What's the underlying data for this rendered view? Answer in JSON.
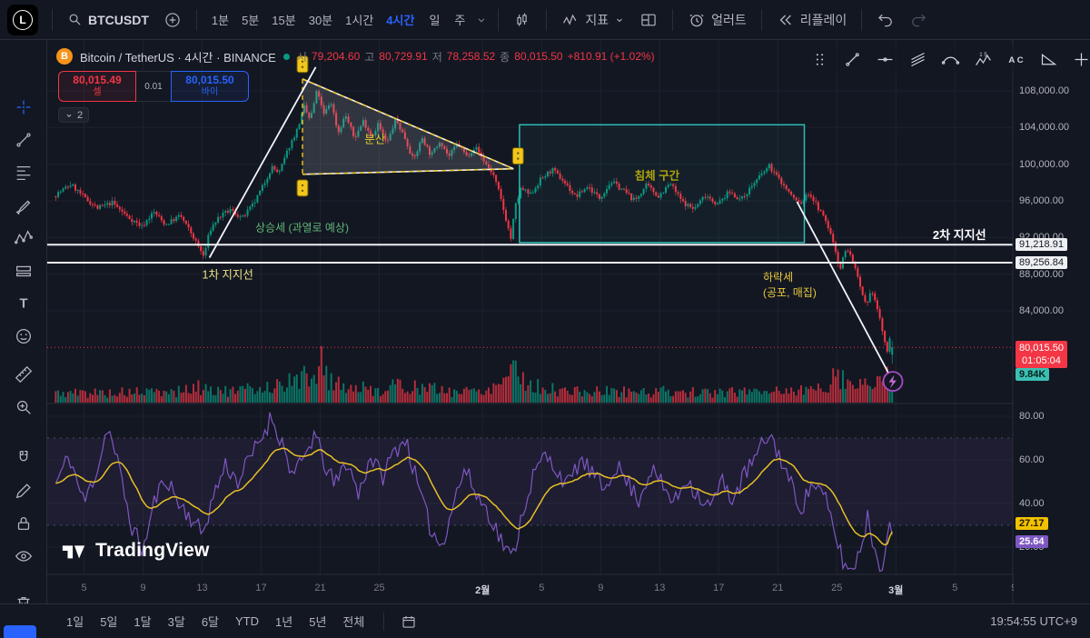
{
  "app": {
    "logo_letter": "L"
  },
  "top_toolbar": {
    "symbol": "BTCUSDT",
    "intervals": [
      "1분",
      "5분",
      "15분",
      "30분",
      "1시간",
      "4시간"
    ],
    "active_interval": "4시간",
    "interval_day": "일",
    "interval_week": "주",
    "indicators_label": "지표",
    "alerts_label": "얼러트",
    "replay_label": "리플레이"
  },
  "legend": {
    "title": "Bitcoin / TetherUS · 4시간 · BINANCE",
    "open_label": "시",
    "open": "79,204.60",
    "high_label": "고",
    "high": "80,729.91",
    "low_label": "저",
    "low": "78,258.52",
    "close_label": "종",
    "close": "80,015.50",
    "change": "+810.91 (+1.02%)",
    "collapse_count": "2"
  },
  "trade_widget": {
    "sell_price": "80,015.49",
    "sell_label": "셀",
    "spread": "0.01",
    "buy_price": "80,015.50",
    "buy_label": "바이"
  },
  "sidebar": {
    "tools": [
      "crosshair",
      "trend-line",
      "fib-retracement",
      "brush",
      "xabcd-pattern",
      "long-position",
      "text",
      "emoji",
      "measure",
      "zoom-in",
      "magnet",
      "draw-edit",
      "lock",
      "hide",
      "trash"
    ]
  },
  "floating_toolbar": {
    "tools": [
      "drag-handle",
      "trend-line-tool",
      "horizontal-line-tool",
      "parallel-channel-tool",
      "curve-tool",
      "polyline-tool",
      "text-pattern-tool",
      "triangle-pattern-tool",
      "clipped-tool"
    ]
  },
  "bottom_toolbar": {
    "ranges": [
      "1일",
      "5일",
      "1달",
      "3달",
      "6달",
      "YTD",
      "1년",
      "5년",
      "전체"
    ],
    "clock": "19:54:55 UTC+9"
  },
  "watermark": "TradingView",
  "chart_data": {
    "type": "candlestick",
    "symbol": "BTCUSDT",
    "exchange": "BINANCE",
    "interval": "4시간",
    "last": {
      "open": 79204.6,
      "high": 80729.91,
      "low": 78258.52,
      "close": 80015.5,
      "change": "+810.91 (+1.02%)"
    },
    "y_axis": {
      "ticks": [
        {
          "label": "108,000.00",
          "price": 108000
        },
        {
          "label": "104,000.00",
          "price": 104000
        },
        {
          "label": "100,000.00",
          "price": 100000
        },
        {
          "label": "96,000.00",
          "price": 96000
        },
        {
          "label": "92,000.00",
          "price": 92000
        },
        {
          "label": "88,000.00",
          "price": 88000
        },
        {
          "label": "84,000.00",
          "price": 84000
        }
      ]
    },
    "x_axis": {
      "labels": [
        {
          "label": "5",
          "day": 2
        },
        {
          "label": "9",
          "day": 6
        },
        {
          "label": "13",
          "day": 10
        },
        {
          "label": "17",
          "day": 14
        },
        {
          "label": "21",
          "day": 18
        },
        {
          "label": "25",
          "day": 22
        },
        {
          "label": "2월",
          "day": 29,
          "major": true
        },
        {
          "label": "5",
          "day": 33
        },
        {
          "label": "9",
          "day": 37
        },
        {
          "label": "13",
          "day": 41
        },
        {
          "label": "17",
          "day": 45
        },
        {
          "label": "21",
          "day": 49
        },
        {
          "label": "25",
          "day": 53
        },
        {
          "label": "3월",
          "day": 57,
          "major": true
        },
        {
          "label": "5",
          "day": 61
        },
        {
          "label": "9",
          "day": 65
        }
      ]
    },
    "supports": [
      {
        "label": "91,218.91",
        "price": 91218.91
      },
      {
        "label": "89,256.84",
        "price": 89256.84
      }
    ],
    "last_price_tag": {
      "price_label": "80,015.50",
      "countdown": "01:05:04"
    },
    "volume_tag": "9.84K",
    "oscillator": {
      "ticks": [
        {
          "label": "80.00",
          "value": 80
        },
        {
          "label": "60.00",
          "value": 60
        },
        {
          "label": "40.00",
          "value": 40
        },
        {
          "label": "20.00",
          "value": 20
        }
      ],
      "bands": [
        70,
        30
      ],
      "ma_value": "27.17",
      "ma_end": 27.17,
      "line_value": "25.64",
      "line_end": 25.64
    },
    "annotations": {
      "dispersion": {
        "text": "분산",
        "day": 21.0,
        "price": 102800
      },
      "stagnation": {
        "text": "침체 구간",
        "day": 39.3,
        "price": 98900
      },
      "uptrend": {
        "text": "상승세 (과열로 예상)",
        "day": 13.6,
        "price": 93100
      },
      "support1": {
        "text": "1차 지지선",
        "day": 10.0,
        "price": 88100
      },
      "support2": {
        "text": "2차 지지선",
        "day": 59.5,
        "price": 93300
      },
      "downtrend": {
        "text": "하락세\n(공포, 매집)",
        "day": 48.0,
        "price": 88600
      }
    },
    "drawings": {
      "triangle": {
        "left_day": 16.8,
        "top_price": 109300,
        "bottom_price": 98900,
        "apex_day": 31.1,
        "apex_price": 99500
      },
      "range_box": {
        "day1": 31.5,
        "day2": 50.8,
        "price1": 104300,
        "price2": 91450
      },
      "uptrend_line": {
        "from": [
          10.5,
          89800
        ],
        "to": [
          17.7,
          110600
        ]
      },
      "downtrend_line": {
        "from": [
          50.3,
          95900
        ],
        "to": [
          56.6,
          76900
        ]
      },
      "markers": [
        [
          16.8,
          110900
        ],
        [
          16.8,
          97400
        ],
        [
          31.4,
          100900
        ]
      ],
      "bolt": [
        56.8,
        76300
      ]
    },
    "price_path": [
      [
        0,
        96500
      ],
      [
        1.2,
        97800
      ],
      [
        2.2,
        96200
      ],
      [
        3,
        95200
      ],
      [
        4,
        95800
      ],
      [
        5,
        94300
      ],
      [
        6,
        93200
      ],
      [
        6.8,
        94800
      ],
      [
        7.6,
        93400
      ],
      [
        8.6,
        94400
      ],
      [
        9.4,
        92300
      ],
      [
        10.2,
        89900
      ],
      [
        10.6,
        92800
      ],
      [
        11.2,
        94200
      ],
      [
        12,
        95000
      ],
      [
        12.8,
        94100
      ],
      [
        13.6,
        95700
      ],
      [
        14.2,
        97600
      ],
      [
        14.8,
        99700
      ],
      [
        15.3,
        99000
      ],
      [
        15.9,
        101600
      ],
      [
        16.5,
        103700
      ],
      [
        17,
        106200
      ],
      [
        17.4,
        104800
      ],
      [
        17.9,
        108200
      ],
      [
        18.3,
        105300
      ],
      [
        18.8,
        106900
      ],
      [
        19.3,
        103400
      ],
      [
        19.8,
        105400
      ],
      [
        20.4,
        102800
      ],
      [
        21,
        104700
      ],
      [
        21.6,
        103000
      ],
      [
        22,
        104400
      ],
      [
        22.6,
        102200
      ],
      [
        23.2,
        104900
      ],
      [
        23.8,
        103000
      ],
      [
        24.4,
        100400
      ],
      [
        25,
        102900
      ],
      [
        25.6,
        100900
      ],
      [
        26.2,
        102600
      ],
      [
        26.8,
        100800
      ],
      [
        27.4,
        102300
      ],
      [
        28,
        100900
      ],
      [
        28.6,
        101900
      ],
      [
        29.2,
        100300
      ],
      [
        29.8,
        98900
      ],
      [
        30.2,
        96900
      ],
      [
        30.7,
        93800
      ],
      [
        31,
        91900
      ],
      [
        31.3,
        95400
      ],
      [
        31.7,
        97400
      ],
      [
        32.3,
        96600
      ],
      [
        33,
        98300
      ],
      [
        33.8,
        99400
      ],
      [
        34.6,
        98100
      ],
      [
        35.4,
        96400
      ],
      [
        36.2,
        97600
      ],
      [
        37,
        96300
      ],
      [
        37.8,
        98100
      ],
      [
        38.6,
        97200
      ],
      [
        39.4,
        96000
      ],
      [
        40.2,
        97700
      ],
      [
        41,
        96500
      ],
      [
        41.8,
        97900
      ],
      [
        42.6,
        95900
      ],
      [
        43.4,
        95100
      ],
      [
        44.2,
        96700
      ],
      [
        45,
        95600
      ],
      [
        45.8,
        97000
      ],
      [
        46.6,
        96100
      ],
      [
        47.4,
        97800
      ],
      [
        48,
        98900
      ],
      [
        48.5,
        99800
      ],
      [
        49.2,
        98300
      ],
      [
        50,
        96600
      ],
      [
        50.6,
        95600
      ],
      [
        51.2,
        96900
      ],
      [
        51.8,
        95300
      ],
      [
        52.4,
        93600
      ],
      [
        52.9,
        91200
      ],
      [
        53.3,
        88500
      ],
      [
        53.7,
        90900
      ],
      [
        54.2,
        89400
      ],
      [
        54.7,
        86200
      ],
      [
        55.1,
        84300
      ],
      [
        55.45,
        86400
      ],
      [
        55.9,
        83800
      ],
      [
        56.2,
        81600
      ],
      [
        56.5,
        79300
      ],
      [
        56.7,
        81600
      ],
      [
        56.9,
        80300
      ]
    ],
    "osc_path": [
      [
        0,
        48
      ],
      [
        1,
        62
      ],
      [
        2,
        40
      ],
      [
        3,
        58
      ],
      [
        3.6,
        76
      ],
      [
        4.3,
        58
      ],
      [
        5.2,
        30
      ],
      [
        6,
        18
      ],
      [
        6.8,
        42
      ],
      [
        7.6,
        52
      ],
      [
        8.4,
        40
      ],
      [
        9.2,
        34
      ],
      [
        10,
        26
      ],
      [
        10.8,
        44
      ],
      [
        11.6,
        58
      ],
      [
        12.4,
        50
      ],
      [
        13.2,
        60
      ],
      [
        14,
        70
      ],
      [
        14.7,
        80
      ],
      [
        15.4,
        68
      ],
      [
        16.2,
        52
      ],
      [
        17,
        62
      ],
      [
        17.6,
        72
      ],
      [
        18.3,
        58
      ],
      [
        19,
        48
      ],
      [
        19.8,
        60
      ],
      [
        20.6,
        44
      ],
      [
        21.4,
        62
      ],
      [
        22.2,
        52
      ],
      [
        23,
        64
      ],
      [
        23.8,
        70
      ],
      [
        24.6,
        48
      ],
      [
        25.4,
        30
      ],
      [
        26.2,
        20
      ],
      [
        27,
        40
      ],
      [
        27.8,
        56
      ],
      [
        28.6,
        44
      ],
      [
        29.4,
        36
      ],
      [
        30.2,
        24
      ],
      [
        31,
        14
      ],
      [
        31.7,
        36
      ],
      [
        32.4,
        52
      ],
      [
        33.2,
        62
      ],
      [
        34,
        56
      ],
      [
        34.8,
        48
      ],
      [
        35.6,
        60
      ],
      [
        36.4,
        54
      ],
      [
        37.2,
        46
      ],
      [
        38,
        58
      ],
      [
        38.8,
        50
      ],
      [
        39.6,
        42
      ],
      [
        40.4,
        56
      ],
      [
        41.2,
        48
      ],
      [
        42,
        40
      ],
      [
        42.8,
        52
      ],
      [
        43.6,
        44
      ],
      [
        44.4,
        38
      ],
      [
        45.2,
        50
      ],
      [
        46,
        42
      ],
      [
        46.8,
        54
      ],
      [
        47.6,
        62
      ],
      [
        48.4,
        72
      ],
      [
        49,
        64
      ],
      [
        49.8,
        50
      ],
      [
        50.6,
        38
      ],
      [
        51.4,
        50
      ],
      [
        52.2,
        42
      ],
      [
        52.8,
        28
      ],
      [
        53.4,
        14
      ],
      [
        54,
        8
      ],
      [
        54.6,
        20
      ],
      [
        55.1,
        34
      ],
      [
        55.6,
        18
      ],
      [
        56,
        10
      ],
      [
        56.4,
        26
      ],
      [
        56.8,
        30
      ],
      [
        56.9,
        25.64
      ]
    ],
    "volume_profile": [
      [
        0,
        1
      ],
      [
        8,
        1.1
      ],
      [
        10,
        1.6
      ],
      [
        12,
        1.1
      ],
      [
        14,
        1.6
      ],
      [
        16,
        2.1
      ],
      [
        17.5,
        3
      ],
      [
        18,
        4.4
      ],
      [
        18.6,
        2.4
      ],
      [
        20,
        1.6
      ],
      [
        22,
        1.3
      ],
      [
        23.5,
        1.9
      ],
      [
        25,
        1.5
      ],
      [
        27,
        1.2
      ],
      [
        29,
        1.3
      ],
      [
        30.3,
        2.2
      ],
      [
        31,
        4.6
      ],
      [
        31.6,
        2.6
      ],
      [
        32.5,
        1.7
      ],
      [
        34,
        1.3
      ],
      [
        36,
        1.1
      ],
      [
        38,
        1.2
      ],
      [
        40,
        1.1
      ],
      [
        42,
        1.2
      ],
      [
        44,
        1
      ],
      [
        46,
        1.1
      ],
      [
        48,
        1.4
      ],
      [
        50,
        1.2
      ],
      [
        52,
        1.5
      ],
      [
        53,
        3.1
      ],
      [
        53.6,
        2.3
      ],
      [
        54.4,
        1.9
      ],
      [
        55,
        2.3
      ],
      [
        55.6,
        1.8
      ],
      [
        56.2,
        2.5
      ],
      [
        56.7,
        3
      ],
      [
        56.9,
        2.4
      ]
    ]
  }
}
